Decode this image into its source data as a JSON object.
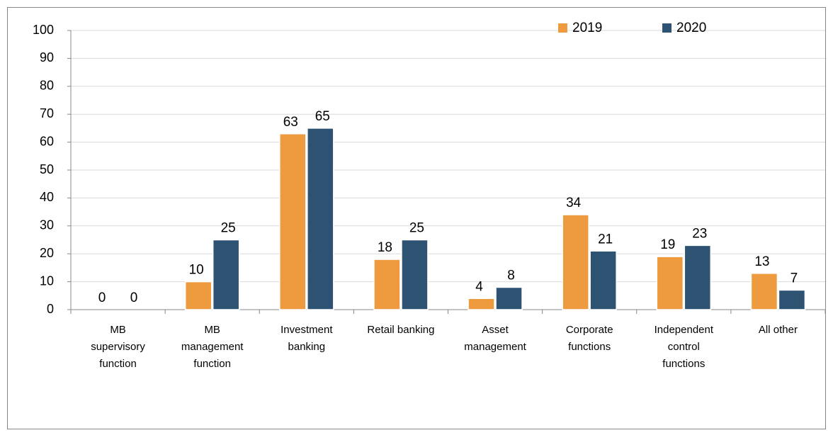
{
  "chart_data": {
    "type": "bar",
    "categories": [
      [
        "MB",
        "supervisory",
        "function"
      ],
      [
        "MB",
        "management",
        "function"
      ],
      [
        "Investment",
        "banking"
      ],
      [
        "Retail banking"
      ],
      [
        "Asset",
        "management"
      ],
      [
        "Corporate",
        "functions"
      ],
      [
        "Independent",
        "control",
        "functions"
      ],
      [
        "All other"
      ]
    ],
    "series": [
      {
        "name": "2019",
        "color": "#ed9b3e",
        "values": [
          0,
          10,
          63,
          18,
          4,
          34,
          19,
          13
        ]
      },
      {
        "name": "2020",
        "color": "#2e5272",
        "values": [
          0,
          25,
          65,
          25,
          8,
          21,
          23,
          7
        ]
      }
    ],
    "ylim": [
      0,
      100
    ],
    "yticks": [
      0,
      10,
      20,
      30,
      40,
      50,
      60,
      70,
      80,
      90,
      100
    ],
    "grid": true,
    "legend": "top-right"
  }
}
